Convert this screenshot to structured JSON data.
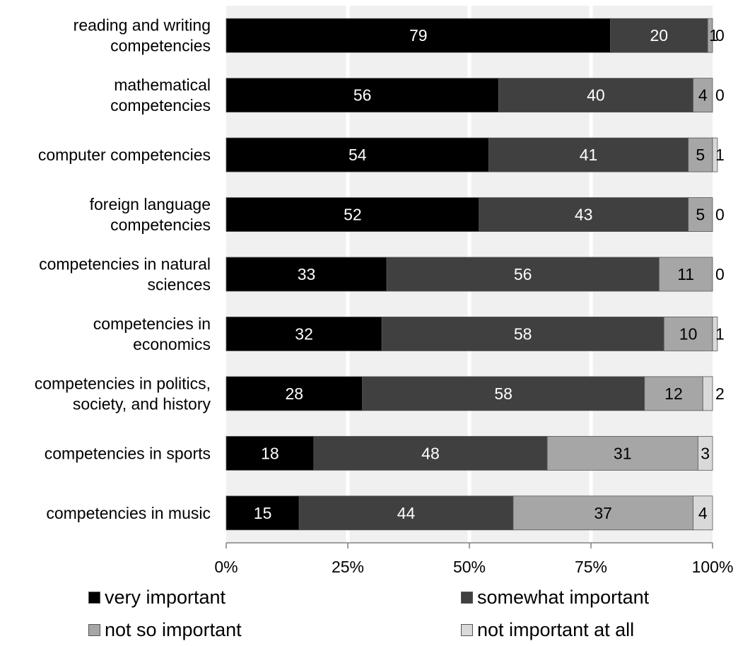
{
  "chart_data": {
    "type": "bar",
    "orientation": "horizontal",
    "stacked": true,
    "categories": [
      "reading and writing\ncompetencies",
      "mathematical\ncompetencies",
      "computer competencies",
      "foreign language\ncompetencies",
      "competencies in natural\nsciences",
      "competencies in\neconomics",
      "competencies in politics,\nsociety, and history",
      "competencies in sports",
      "competencies in music"
    ],
    "series": [
      {
        "name": "very important",
        "color": "#000000",
        "values": [
          79,
          56,
          54,
          52,
          33,
          32,
          28,
          18,
          15
        ]
      },
      {
        "name": "somewhat important",
        "color": "#404040",
        "values": [
          20,
          40,
          41,
          43,
          56,
          58,
          58,
          48,
          44
        ]
      },
      {
        "name": "not so important",
        "color": "#a6a6a6",
        "values": [
          1,
          4,
          5,
          5,
          11,
          10,
          12,
          31,
          37
        ]
      },
      {
        "name": "not important at all",
        "color": "#d9d9d9",
        "values": [
          0,
          0,
          1,
          0,
          0,
          1,
          2,
          3,
          4
        ]
      }
    ],
    "data_labels": [
      [
        "79",
        "20",
        "1",
        "0"
      ],
      [
        "56",
        "40",
        "4",
        "0"
      ],
      [
        "54",
        "41",
        "5",
        "1"
      ],
      [
        "52",
        "43",
        "5",
        "0"
      ],
      [
        "33",
        "56",
        "11",
        "0"
      ],
      [
        "32",
        "58",
        "10",
        "1"
      ],
      [
        "28",
        "58",
        "12",
        "2"
      ],
      [
        "18",
        "48",
        "31",
        "3"
      ],
      [
        "15",
        "44",
        "37",
        "4"
      ]
    ],
    "x_ticks": [
      "0%",
      "25%",
      "50%",
      "75%",
      "100%"
    ],
    "xlim": [
      0,
      100
    ],
    "grid": true,
    "legend_position": "bottom"
  },
  "legend": {
    "items": [
      {
        "label": "very important",
        "color": "#000000"
      },
      {
        "label": "somewhat important",
        "color": "#404040"
      },
      {
        "label": "not so important",
        "color": "#a6a6a6"
      },
      {
        "label": "not important at all",
        "color": "#d9d9d9"
      }
    ]
  }
}
